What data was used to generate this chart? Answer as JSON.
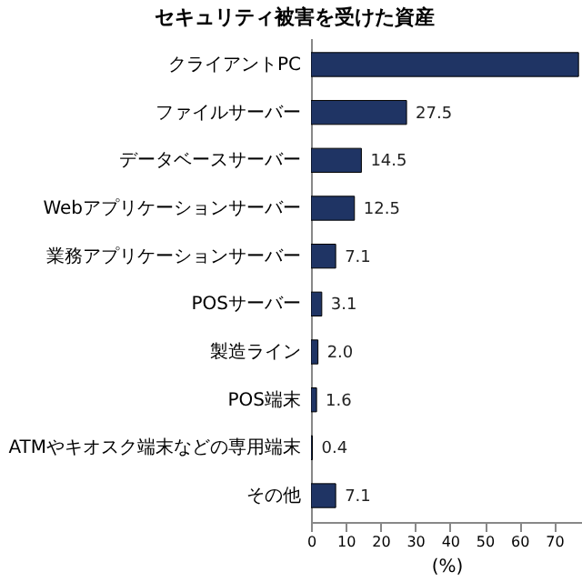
{
  "chart_data": {
    "type": "bar",
    "orientation": "horizontal",
    "title": "セキュリティ被害を受けた資産",
    "xlabel": "(%)",
    "categories": [
      "クライアントPC",
      "ファイルサーバー",
      "データベースサーバー",
      "Webアプリケーションサーバー",
      "業務アプリケーションサーバー",
      "POSサーバー",
      "製造ライン",
      "POS端末",
      "ATMやキオスク端末などの専用端末",
      "その他"
    ],
    "values": [
      77,
      27.5,
      14.5,
      12.5,
      7.1,
      3.1,
      2.0,
      1.6,
      0.4,
      7.1
    ],
    "value_labels": [
      null,
      "27.5",
      "14.5",
      "12.5",
      "7.1",
      "3.1",
      "2.0",
      "1.6",
      "0.4",
      "7.1"
    ],
    "color": "#1f3464",
    "xlim": [
      0,
      78
    ],
    "xticks": [
      0,
      10,
      20,
      30,
      40,
      50,
      60,
      70
    ],
    "grid": false
  }
}
